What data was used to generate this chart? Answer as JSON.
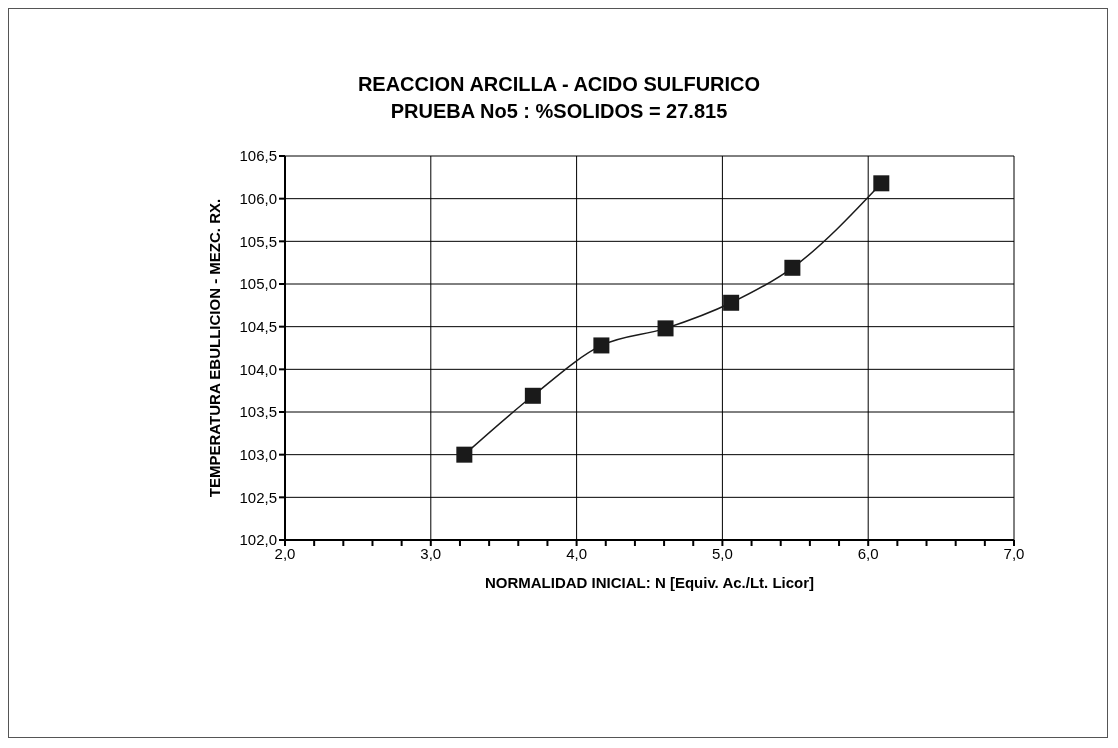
{
  "chart_data": {
    "type": "line",
    "title": "REACCION ARCILLA - ACIDO SULFURICO",
    "subtitle": "PRUEBA No5 : %SOLIDOS = 27.815",
    "xlabel": "NORMALIDAD INICIAL: N [Equiv. Ac./Lt. Licor]",
    "ylabel": "TEMPERATURA EBULLICION - MEZC. RX.",
    "x": [
      3.23,
      3.7,
      4.17,
      4.61,
      5.06,
      5.48,
      6.09
    ],
    "series": [
      {
        "color": "#1a1a1a",
        "values": [
          103.0,
          103.69,
          104.28,
          104.48,
          104.78,
          105.19,
          106.18
        ]
      }
    ],
    "xlim": [
      2,
      7
    ],
    "xticks": [
      {
        "value": 2,
        "label": "2,0"
      },
      {
        "value": 2.2,
        "label": null
      },
      {
        "value": 2.4,
        "label": null
      },
      {
        "value": 2.6,
        "label": null
      },
      {
        "value": 2.8,
        "label": null
      },
      {
        "value": 3,
        "label": "3,0"
      },
      {
        "value": 3.2,
        "label": null
      },
      {
        "value": 3.4,
        "label": null
      },
      {
        "value": 3.6,
        "label": null
      },
      {
        "value": 3.8,
        "label": null
      },
      {
        "value": 4,
        "label": "4,0"
      },
      {
        "value": 4.2,
        "label": null
      },
      {
        "value": 4.4,
        "label": null
      },
      {
        "value": 4.6,
        "label": null
      },
      {
        "value": 4.8,
        "label": null
      },
      {
        "value": 5,
        "label": "5,0"
      },
      {
        "value": 5.2,
        "label": null
      },
      {
        "value": 5.4,
        "label": null
      },
      {
        "value": 5.6,
        "label": null
      },
      {
        "value": 5.8,
        "label": null
      },
      {
        "value": 6,
        "label": "6,0"
      },
      {
        "value": 6.2,
        "label": null
      },
      {
        "value": 6.4,
        "label": null
      },
      {
        "value": 6.6,
        "label": null
      },
      {
        "value": 6.8,
        "label": null
      },
      {
        "value": 7,
        "label": "7,0"
      }
    ],
    "ylim": [
      102,
      106.5
    ],
    "yticks": [
      {
        "value": 102,
        "label": "102,0"
      },
      {
        "value": 102.5,
        "label": "102,5"
      },
      {
        "value": 103,
        "label": "103,0"
      },
      {
        "value": 103.5,
        "label": "103,5"
      },
      {
        "value": 104,
        "label": "104,0"
      },
      {
        "value": 104.5,
        "label": "104,5"
      },
      {
        "value": 105,
        "label": "105,0"
      },
      {
        "value": 105.5,
        "label": "105,5"
      },
      {
        "value": 106,
        "label": "106,0"
      },
      {
        "value": 106.5,
        "label": "106,5"
      }
    ],
    "grid": true,
    "marker": "square",
    "line_style": "solid",
    "legend": false
  }
}
